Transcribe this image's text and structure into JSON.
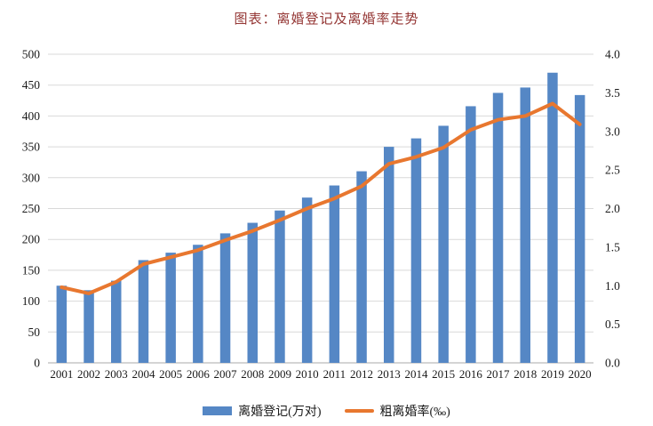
{
  "title": "图表：离婚登记及离婚率走势",
  "colors": {
    "bar": "#5587c5",
    "line": "#e8772f",
    "title_text": "#943634",
    "grid": "#d9d9d9",
    "axis_line": "#c6c6c6",
    "tick_text": "#1a1a1a"
  },
  "chart_data": {
    "type": "bar",
    "subtype": "bar+line dual axis",
    "title": "图表：离婚登记及离婚率走势",
    "categories": [
      "2001",
      "2002",
      "2003",
      "2004",
      "2005",
      "2006",
      "2007",
      "2008",
      "2009",
      "2010",
      "2011",
      "2012",
      "2013",
      "2014",
      "2015",
      "2016",
      "2017",
      "2018",
      "2019",
      "2020"
    ],
    "series": [
      {
        "name": "离婚登记(万对)",
        "type": "bar",
        "axis": "left",
        "values": [
          125.0,
          117.7,
          133.1,
          166.5,
          178.5,
          191.3,
          209.8,
          226.9,
          246.8,
          267.8,
          287.4,
          310.4,
          350.0,
          363.7,
          384.1,
          415.8,
          437.4,
          446.1,
          470.1,
          433.9
        ]
      },
      {
        "name": "粗离婚率(‰)",
        "type": "line",
        "axis": "right",
        "values": [
          0.98,
          0.9,
          1.05,
          1.28,
          1.37,
          1.46,
          1.59,
          1.71,
          1.85,
          2.0,
          2.13,
          2.29,
          2.58,
          2.67,
          2.79,
          3.02,
          3.15,
          3.2,
          3.36,
          3.09
        ]
      }
    ],
    "left_axis": {
      "min": 0,
      "max": 500,
      "step": 50,
      "tick_labels": [
        "0",
        "50",
        "100",
        "150",
        "200",
        "250",
        "300",
        "350",
        "400",
        "450",
        "500"
      ]
    },
    "right_axis": {
      "min": 0,
      "max": 4.0,
      "step": 0.5,
      "tick_labels": [
        "0.0",
        "0.5",
        "1.0",
        "1.5",
        "2.0",
        "2.5",
        "3.0",
        "3.5",
        "4.0"
      ]
    },
    "grid": true,
    "legend_position": "bottom"
  },
  "legend": {
    "items": [
      {
        "label": "离婚登记(万对)",
        "swatch": "bar"
      },
      {
        "label": "粗离婚率(‰)",
        "swatch": "line"
      }
    ]
  }
}
